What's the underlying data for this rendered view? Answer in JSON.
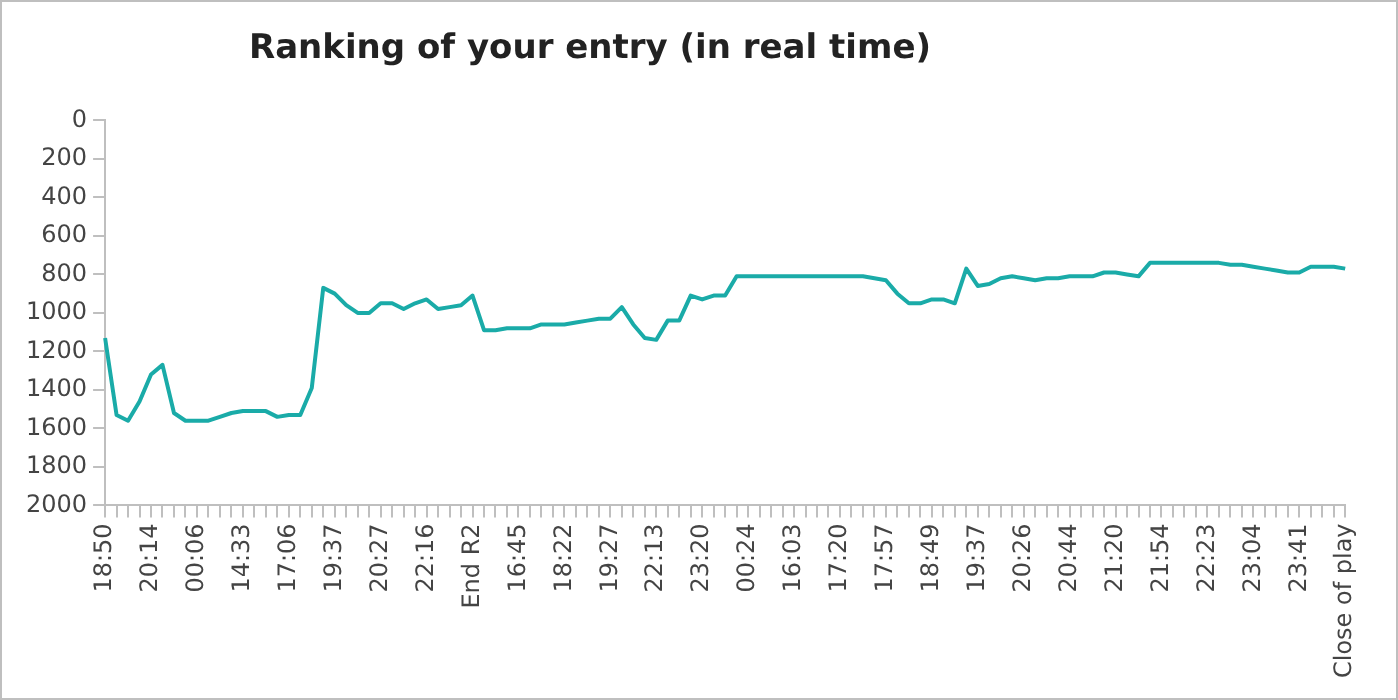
{
  "chart_data": {
    "type": "line",
    "title": "Ranking of your entry (in real time)",
    "categories": [
      "18:50",
      null,
      null,
      null,
      "20:14",
      null,
      null,
      null,
      "00:06",
      null,
      null,
      null,
      "14:33",
      null,
      null,
      null,
      "17:06",
      null,
      null,
      null,
      "19:37",
      null,
      null,
      null,
      "20:27",
      null,
      null,
      null,
      "22:16",
      null,
      null,
      null,
      "End R2",
      null,
      null,
      null,
      "16:45",
      null,
      null,
      null,
      "18:22",
      null,
      null,
      null,
      "19:27",
      null,
      null,
      null,
      "22:13",
      null,
      null,
      null,
      "23:20",
      null,
      null,
      null,
      "00:24",
      null,
      null,
      null,
      "16:03",
      null,
      null,
      null,
      "17:20",
      null,
      null,
      null,
      "17:57",
      null,
      null,
      null,
      "18:49",
      null,
      null,
      null,
      "19:37",
      null,
      null,
      null,
      "20:26",
      null,
      null,
      null,
      "20:44",
      null,
      null,
      null,
      "21:20",
      null,
      null,
      null,
      "21:54",
      null,
      null,
      null,
      "22:23",
      null,
      null,
      null,
      "23:04",
      null,
      null,
      null,
      "23:41",
      null,
      null,
      null,
      "Close of play"
    ],
    "series": [
      {
        "color": "#1aaba8",
        "values": [
          1130,
          1530,
          1560,
          1460,
          1320,
          1270,
          1520,
          1560,
          1560,
          1560,
          1540,
          1520,
          1510,
          1510,
          1510,
          1540,
          1530,
          1530,
          1390,
          870,
          900,
          960,
          1000,
          1000,
          950,
          950,
          980,
          950,
          930,
          980,
          970,
          960,
          910,
          1090,
          1090,
          1080,
          1080,
          1080,
          1060,
          1060,
          1060,
          1050,
          1040,
          1030,
          1030,
          970,
          1060,
          1130,
          1140,
          1040,
          1040,
          910,
          930,
          910,
          910,
          810,
          810,
          810,
          810,
          810,
          810,
          810,
          810,
          810,
          810,
          810,
          810,
          820,
          830,
          900,
          950,
          950,
          930,
          930,
          950,
          770,
          860,
          850,
          820,
          810,
          820,
          830,
          820,
          820,
          810,
          810,
          810,
          790,
          790,
          800,
          810,
          740,
          740,
          740,
          740,
          740,
          740,
          740,
          750,
          750,
          760,
          770,
          780,
          790,
          790,
          760,
          760,
          760,
          770
        ]
      }
    ],
    "ylim": [
      2000,
      0
    ],
    "yticks": [
      0,
      200,
      400,
      600,
      800,
      1000,
      1200,
      1400,
      1600,
      1800,
      2000
    ],
    "grid": false,
    "legend": false,
    "marker": "none",
    "line_style": "solid"
  }
}
